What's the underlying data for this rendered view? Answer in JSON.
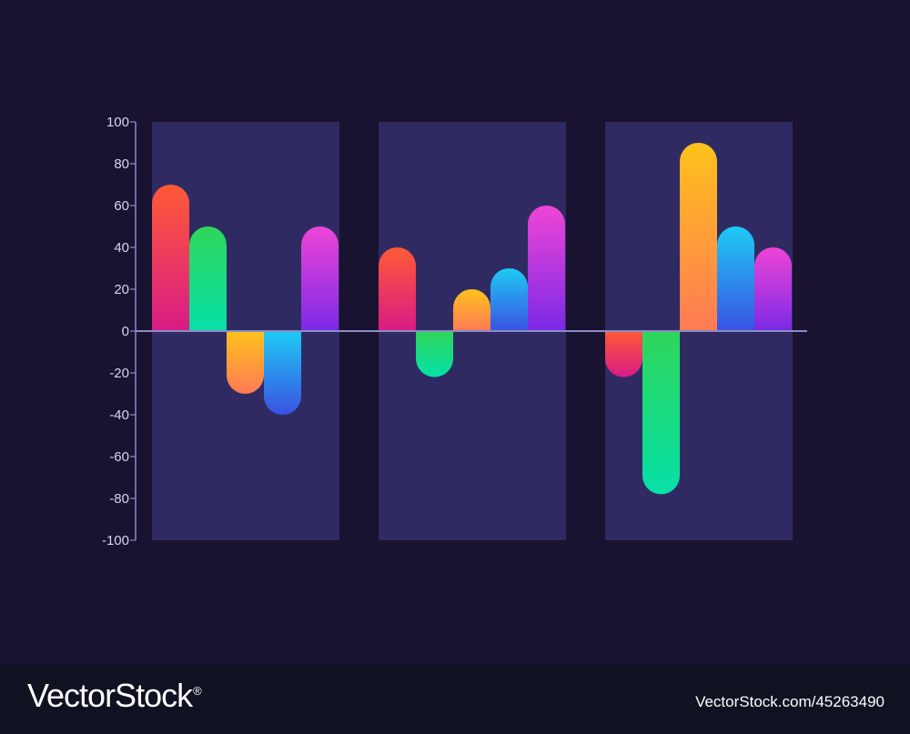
{
  "chart_data": {
    "type": "bar",
    "ylim": [
      -100,
      100
    ],
    "yticks": [
      100,
      80,
      60,
      40,
      20,
      0,
      -20,
      -40,
      -60,
      -80,
      -100
    ],
    "groups": [
      {
        "values": [
          70,
          50,
          -30,
          -40,
          50
        ]
      },
      {
        "values": [
          40,
          -22,
          20,
          30,
          60
        ]
      },
      {
        "values": [
          -22,
          -78,
          90,
          50,
          40
        ]
      }
    ],
    "bar_colors": [
      [
        "#ff5a36",
        "#d81b86"
      ],
      [
        "#2fd65a",
        "#06e0a8"
      ],
      [
        "#ffc21c",
        "#ff7a55"
      ],
      [
        "#1ecaf5",
        "#3a52e2"
      ],
      [
        "#ef45d6",
        "#7a2ae6"
      ]
    ],
    "panel_color": "#2f2b62",
    "axis_color": "#8a8cc4",
    "tick_label_color": "#d7d6ea",
    "background_color": "#1a1231"
  },
  "watermark": {
    "brand": "VectorStock",
    "registered": "®",
    "image_id": "VectorStock.com/45263490"
  }
}
